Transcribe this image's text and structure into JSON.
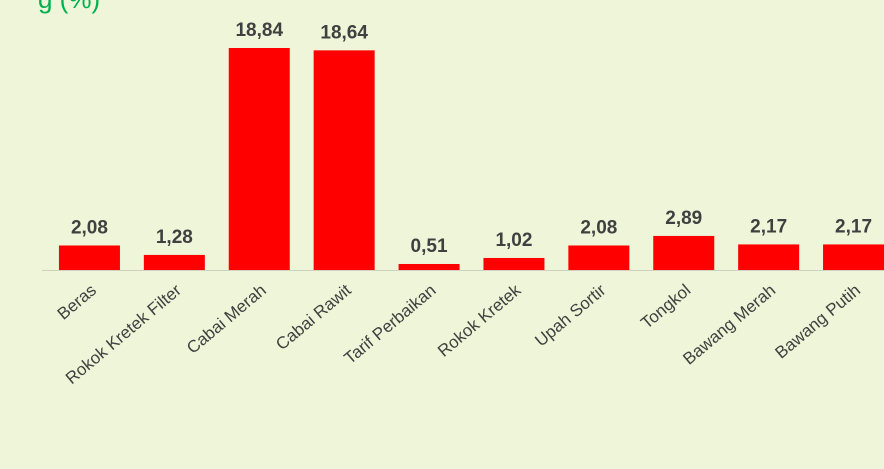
{
  "chart_data": {
    "type": "bar",
    "title": "g (%)",
    "categories": [
      "Beras",
      "Rokok Kretek Filter",
      "Cabai Merah",
      "Cabai Rawit",
      "Tarif Perbaikan",
      "Rokok Kretek",
      "Upah Sortir",
      "Tongkol",
      "Bawang Merah",
      "Bawang Putih"
    ],
    "values": [
      2.08,
      1.28,
      18.84,
      18.64,
      0.51,
      1.02,
      2.08,
      2.89,
      2.17,
      2.17
    ],
    "value_labels": [
      "2,08",
      "1,28",
      "18,84",
      "18,64",
      "0,51",
      "1,02",
      "2,08",
      "2,89",
      "2,17",
      "2,17"
    ],
    "color": "#ff0000"
  }
}
